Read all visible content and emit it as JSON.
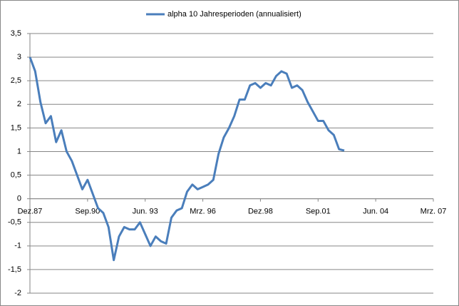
{
  "chart_data": {
    "type": "line",
    "categories": [
      "Dez.87",
      null,
      null,
      null,
      null,
      null,
      null,
      null,
      null,
      null,
      null,
      "Sep.90",
      null,
      null,
      null,
      null,
      null,
      null,
      null,
      null,
      null,
      null,
      "Jun. 93",
      null,
      null,
      null,
      null,
      null,
      null,
      null,
      null,
      null,
      null,
      "Mrz. 96",
      null,
      null,
      null,
      null,
      null,
      null,
      null,
      null,
      null,
      null,
      "Dez.98",
      null,
      null,
      null,
      null,
      null,
      null,
      null,
      null,
      null,
      null,
      "Sep.01",
      null,
      null,
      null,
      null,
      null,
      null,
      null,
      null,
      null,
      null,
      "Jun. 04",
      null,
      null,
      null,
      null,
      null,
      null,
      null,
      null,
      null,
      null,
      "Mrz. 07"
    ],
    "series": [
      {
        "name": "alpha 10 Jahresperioden (annualisiert)",
        "color": "#4a7ebb",
        "values": [
          3.0,
          2.7,
          2.05,
          1.6,
          1.75,
          1.2,
          1.45,
          1.0,
          0.8,
          0.5,
          0.2,
          0.4,
          0.1,
          -0.2,
          -0.3,
          -0.6,
          -1.3,
          -0.8,
          -0.6,
          -0.65,
          -0.65,
          -0.5,
          -0.75,
          -1.0,
          -0.8,
          -0.9,
          -0.95,
          -0.4,
          -0.25,
          -0.2,
          0.15,
          0.3,
          0.2,
          0.25,
          0.3,
          0.4,
          0.95,
          1.3,
          1.5,
          1.75,
          2.1,
          2.1,
          2.4,
          2.45,
          2.35,
          2.45,
          2.4,
          2.6,
          2.7,
          2.65,
          2.35,
          2.4,
          2.3,
          2.05,
          1.85,
          1.65,
          1.65,
          1.45,
          1.35,
          1.05,
          1.02,
          null,
          null,
          null,
          null,
          null,
          null,
          null,
          null,
          null,
          null,
          null,
          null,
          null,
          null,
          null,
          null,
          null
        ]
      }
    ],
    "ylim": [
      -2,
      3.5
    ],
    "yticks": [
      -2,
      {
        "value": -1.5,
        "label": "-1,5"
      },
      -1,
      {
        "value": -0.5,
        "label": "-0,5"
      },
      0,
      {
        "value": 0.5,
        "label": "0,5"
      },
      1,
      {
        "value": 1.5,
        "label": "1,5"
      },
      2,
      {
        "value": 2.5,
        "label": "2,5"
      },
      3,
      {
        "value": 3.5,
        "label": "3,5"
      }
    ],
    "grid": true,
    "legend": "top"
  }
}
